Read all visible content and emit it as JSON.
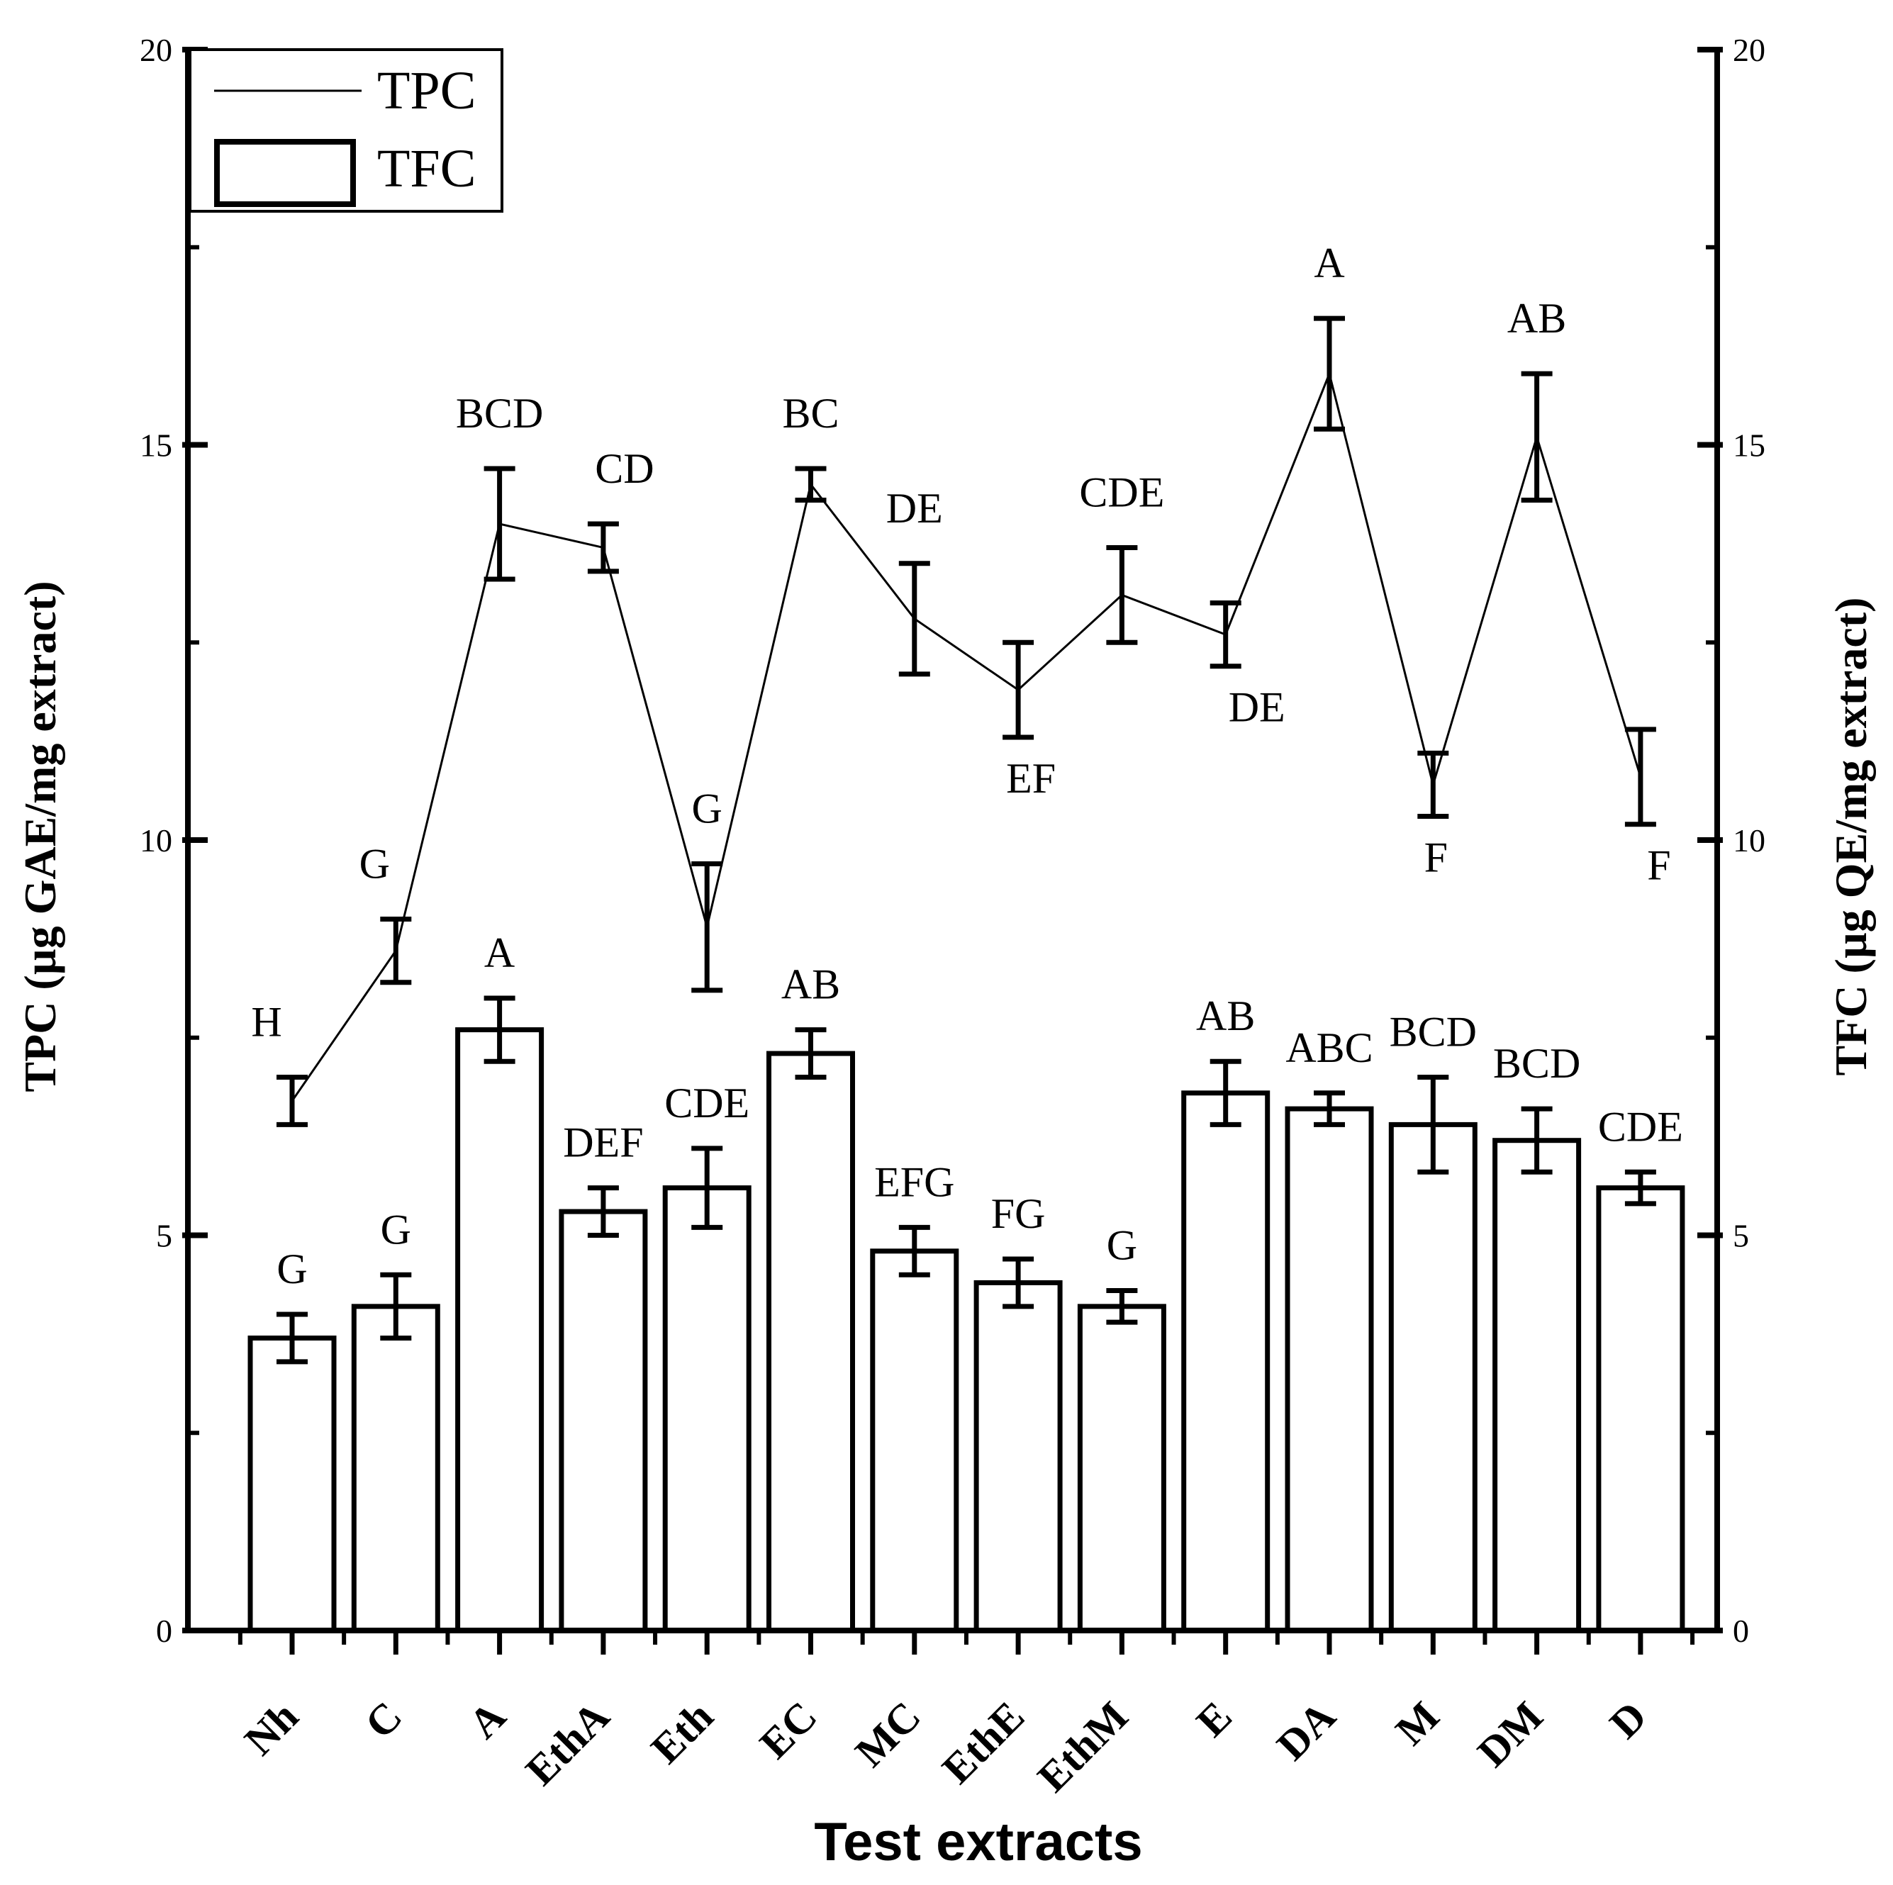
{
  "chart_data": {
    "type": "bar+line",
    "xlabel": "Test extracts",
    "ylabel_left": "TPC (µg GAE/mg extract)",
    "ylabel_right": "TFC (µg QE/mg extract)",
    "ylim": [
      0,
      20
    ],
    "yticks": [
      "0",
      "5",
      "10",
      "15",
      "20"
    ],
    "categories": [
      "Nh",
      "C",
      "A",
      "EthA",
      "Eth",
      "EC",
      "MC",
      "EthE",
      "EthM",
      "E",
      "DA",
      "M",
      "DM",
      "D"
    ],
    "legend": [
      {
        "name": "TPC",
        "style": "line"
      },
      {
        "name": "TFC",
        "style": "bar"
      }
    ],
    "series": [
      {
        "name": "TPC",
        "type": "line",
        "values": [
          6.7,
          8.6,
          14.0,
          13.7,
          8.9,
          14.5,
          12.8,
          11.9,
          13.1,
          12.6,
          15.9,
          10.7,
          15.1,
          10.8
        ],
        "errors": [
          0.3,
          0.4,
          0.7,
          0.3,
          0.8,
          0.2,
          0.7,
          0.6,
          0.6,
          0.4,
          0.7,
          0.4,
          0.8,
          0.6
        ],
        "letters": [
          "H",
          "G",
          "BCD",
          "CD",
          "G",
          "BC",
          "DE",
          "EF",
          "CDE",
          "DE",
          "A",
          "F",
          "AB",
          "F"
        ]
      },
      {
        "name": "TFC",
        "type": "bar",
        "values": [
          3.7,
          4.1,
          7.6,
          5.3,
          5.6,
          7.3,
          4.8,
          4.4,
          4.1,
          6.8,
          6.6,
          6.4,
          6.2,
          5.6
        ],
        "errors": [
          0.3,
          0.4,
          0.4,
          0.3,
          0.5,
          0.3,
          0.3,
          0.3,
          0.2,
          0.4,
          0.2,
          0.6,
          0.4,
          0.2
        ],
        "letters": [
          "G",
          "G",
          "A",
          "DEF",
          "CDE",
          "AB",
          "EFG",
          "FG",
          "G",
          "AB",
          "ABC",
          "BCD",
          "BCD",
          "CDE"
        ]
      }
    ]
  }
}
